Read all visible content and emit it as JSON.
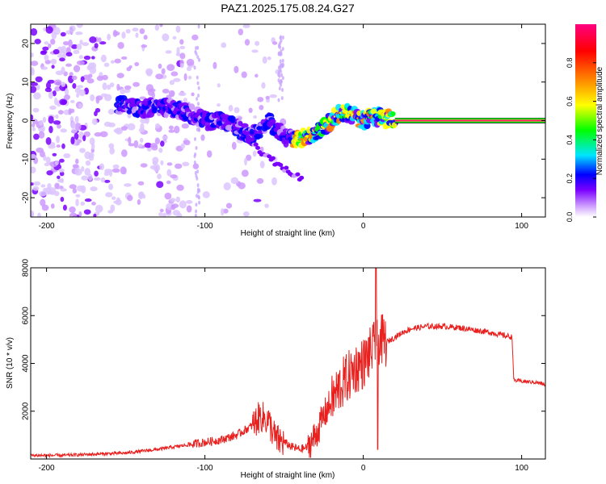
{
  "figure_title": "PAZ1.2025.175.08.24.G27",
  "chart_data": [
    {
      "type": "heatmap",
      "xlabel": "Height of straight line (km)",
      "ylabel": "Frequency (Hz)",
      "xlim": [
        -210,
        115
      ],
      "ylim": [
        -25,
        25
      ],
      "x_ticks": [
        -200,
        -100,
        0,
        100
      ],
      "y_ticks": [
        -20,
        -10,
        0,
        10,
        20
      ],
      "colorbar": {
        "label": "Normalized spectral amplitude",
        "range": [
          0.0,
          1.0
        ],
        "ticks": [
          0.0,
          0.2,
          0.4,
          0.6,
          0.8
        ],
        "colors": [
          "#ffffff",
          "#cc99ff",
          "#7a00ff",
          "#0000ff",
          "#00e6ff",
          "#00ff00",
          "#ffff00",
          "#ff8000",
          "#ff0000",
          "#ff0080"
        ]
      },
      "ridge": {
        "x": [
          -150,
          -140,
          -130,
          -120,
          -110,
          -100,
          -90,
          -80,
          -70,
          -60,
          -50,
          -40,
          -30,
          -20,
          -15,
          -10,
          -5,
          0,
          5,
          10,
          15,
          20
        ],
        "y": [
          4,
          3,
          4,
          3,
          2,
          0,
          0,
          -2,
          -4,
          0,
          -4,
          -5,
          -3,
          0,
          2,
          2,
          1,
          0,
          1,
          1,
          0.5,
          0
        ]
      },
      "secondary_ridge": {
        "x": [
          -75,
          -65,
          -55,
          -45,
          -38
        ],
        "y": [
          -3,
          -8,
          -11,
          -14,
          -15
        ]
      },
      "steady_line": {
        "x_start": 20,
        "x_end": 115,
        "frequency": 0
      }
    },
    {
      "type": "line",
      "xlabel": "Height of straight line (km)",
      "ylabel": "SNR (10 * v/v)",
      "xlim": [
        -210,
        115
      ],
      "ylim": [
        0,
        8000
      ],
      "x_ticks": [
        -200,
        -100,
        0,
        100
      ],
      "y_ticks": [
        2000,
        4000,
        6000,
        8000
      ],
      "color": "#e8201e",
      "x": [
        -210,
        -190,
        -170,
        -150,
        -130,
        -110,
        -100,
        -90,
        -80,
        -70,
        -65,
        -60,
        -55,
        -50,
        -45,
        -40,
        -35,
        -30,
        -25,
        -20,
        -15,
        -10,
        -5,
        0,
        5,
        10,
        15,
        20,
        25,
        30,
        35,
        40,
        50,
        60,
        70,
        80,
        90,
        94,
        95,
        100,
        110,
        115
      ],
      "y": [
        150,
        150,
        200,
        250,
        400,
        600,
        700,
        800,
        1000,
        1400,
        1800,
        1600,
        800,
        700,
        500,
        400,
        500,
        1000,
        1800,
        2400,
        3000,
        3400,
        3800,
        4000,
        4500,
        5000,
        4900,
        5100,
        5300,
        5450,
        5500,
        5550,
        5550,
        5500,
        5400,
        5300,
        5150,
        5100,
        3300,
        3250,
        3200,
        3100
      ]
    }
  ]
}
